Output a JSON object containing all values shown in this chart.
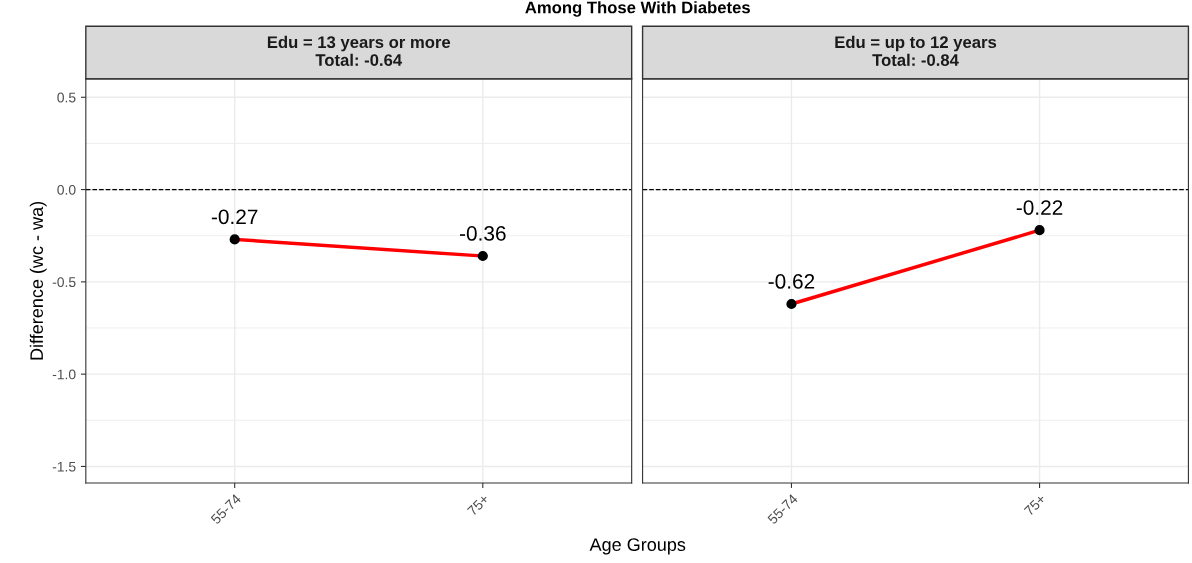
{
  "chart_data": [
    {
      "type": "line",
      "title": "Edu = 13 years or more\nTotal: -0.64",
      "ylabel": "Difference (wc - wa)",
      "xlabel": "Age Groups",
      "annotations": [
        "Among Those With Diabetes"
      ],
      "categories": [
        "55-74",
        "75+"
      ],
      "series": [
        {
          "color": "#ff0000",
          "values": [
            -0.27,
            -0.36
          ]
        }
      ],
      "ylim": [
        -1.59,
        0.6
      ],
      "yticks": [
        {
          "value": 0.5,
          "label": "0.5"
        },
        {
          "value": 0.0,
          "label": "0.0"
        },
        {
          "value": -0.5,
          "label": "-0.5"
        },
        {
          "value": -1.0,
          "label": "-1.0"
        },
        {
          "value": -1.5,
          "label": "-1.5"
        }
      ],
      "ref_lines": [
        {
          "axis": "y",
          "value": 0,
          "line_style": "dashed"
        }
      ],
      "data_labels": true,
      "grid": true,
      "marker": "circle",
      "line_style": "solid"
    },
    {
      "type": "line",
      "title": "Edu = up to 12 years\nTotal: -0.84",
      "categories": [
        "55-74",
        "75+"
      ],
      "series": [
        {
          "color": "#ff0000",
          "values": [
            -0.62,
            -0.22
          ]
        }
      ],
      "ylim": [
        -1.59,
        0.6
      ],
      "yticks": [
        {
          "value": 0.5,
          "label": null
        },
        {
          "value": 0.0,
          "label": null
        },
        {
          "value": -0.5,
          "label": null
        },
        {
          "value": -1.0,
          "label": null
        },
        {
          "value": -1.5,
          "label": null
        }
      ],
      "ref_lines": [
        {
          "axis": "y",
          "value": 0,
          "line_style": "dashed"
        }
      ],
      "data_labels": true,
      "grid": true,
      "marker": "circle",
      "line_style": "solid",
      "tick_labels": "x"
    }
  ]
}
